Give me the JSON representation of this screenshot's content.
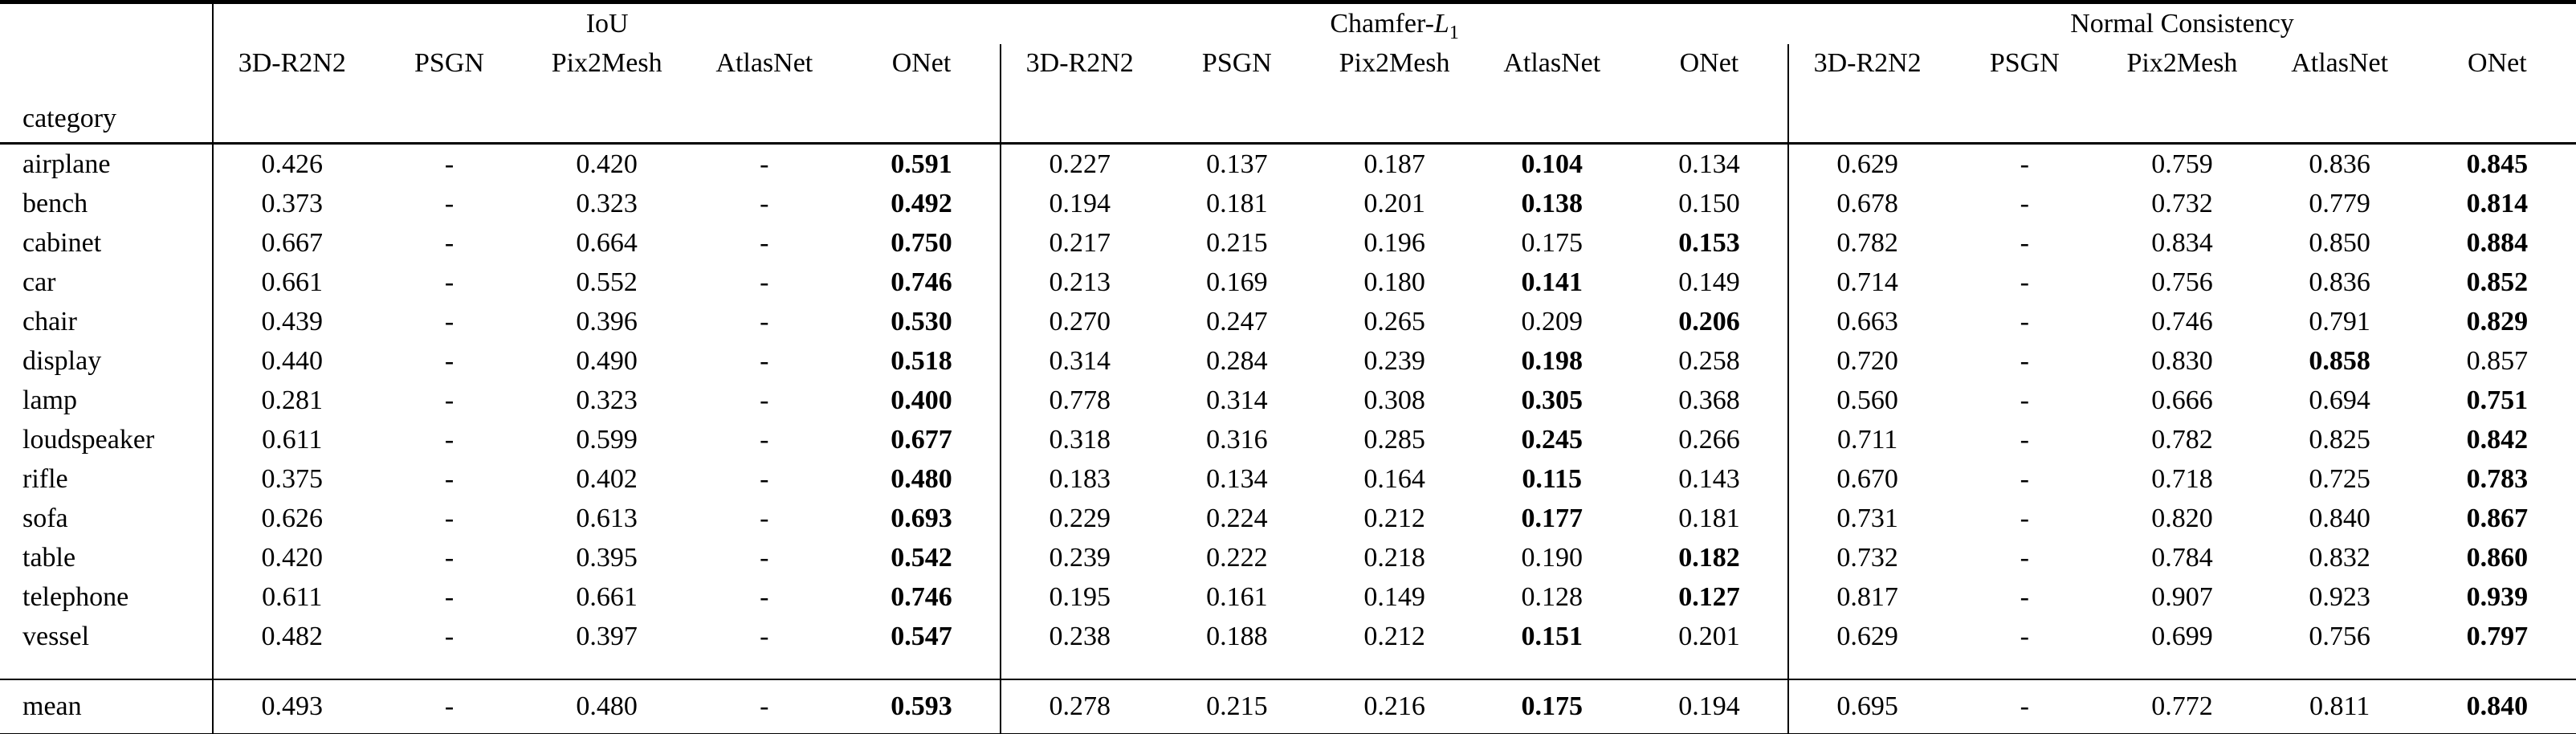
{
  "table": {
    "category_header": "category",
    "groups": [
      {
        "label": "IoU",
        "columns": [
          "3D-R2N2",
          "PSGN",
          "Pix2Mesh",
          "AtlasNet",
          "ONet"
        ]
      },
      {
        "label_prefix": "Chamfer-",
        "label_math": "L",
        "label_sub": "1",
        "columns": [
          "3D-R2N2",
          "PSGN",
          "Pix2Mesh",
          "AtlasNet",
          "ONet"
        ]
      },
      {
        "label": "Normal Consistency",
        "columns": [
          "3D-R2N2",
          "PSGN",
          "Pix2Mesh",
          "AtlasNet",
          "ONet"
        ]
      }
    ],
    "rows": [
      {
        "category": "airplane",
        "iou": [
          "0.426",
          "-",
          "0.420",
          "-",
          "0.591"
        ],
        "iou_bold": [
          4
        ],
        "chamfer": [
          "0.227",
          "0.137",
          "0.187",
          "0.104",
          "0.134"
        ],
        "chamfer_bold": [
          3
        ],
        "normal": [
          "0.629",
          "-",
          "0.759",
          "0.836",
          "0.845"
        ],
        "normal_bold": [
          4
        ]
      },
      {
        "category": "bench",
        "iou": [
          "0.373",
          "-",
          "0.323",
          "-",
          "0.492"
        ],
        "iou_bold": [
          4
        ],
        "chamfer": [
          "0.194",
          "0.181",
          "0.201",
          "0.138",
          "0.150"
        ],
        "chamfer_bold": [
          3
        ],
        "normal": [
          "0.678",
          "-",
          "0.732",
          "0.779",
          "0.814"
        ],
        "normal_bold": [
          4
        ]
      },
      {
        "category": "cabinet",
        "iou": [
          "0.667",
          "-",
          "0.664",
          "-",
          "0.750"
        ],
        "iou_bold": [
          4
        ],
        "chamfer": [
          "0.217",
          "0.215",
          "0.196",
          "0.175",
          "0.153"
        ],
        "chamfer_bold": [
          4
        ],
        "normal": [
          "0.782",
          "-",
          "0.834",
          "0.850",
          "0.884"
        ],
        "normal_bold": [
          4
        ]
      },
      {
        "category": "car",
        "iou": [
          "0.661",
          "-",
          "0.552",
          "-",
          "0.746"
        ],
        "iou_bold": [
          4
        ],
        "chamfer": [
          "0.213",
          "0.169",
          "0.180",
          "0.141",
          "0.149"
        ],
        "chamfer_bold": [
          3
        ],
        "normal": [
          "0.714",
          "-",
          "0.756",
          "0.836",
          "0.852"
        ],
        "normal_bold": [
          4
        ]
      },
      {
        "category": "chair",
        "iou": [
          "0.439",
          "-",
          "0.396",
          "-",
          "0.530"
        ],
        "iou_bold": [
          4
        ],
        "chamfer": [
          "0.270",
          "0.247",
          "0.265",
          "0.209",
          "0.206"
        ],
        "chamfer_bold": [
          4
        ],
        "normal": [
          "0.663",
          "-",
          "0.746",
          "0.791",
          "0.829"
        ],
        "normal_bold": [
          4
        ]
      },
      {
        "category": "display",
        "iou": [
          "0.440",
          "-",
          "0.490",
          "-",
          "0.518"
        ],
        "iou_bold": [
          4
        ],
        "chamfer": [
          "0.314",
          "0.284",
          "0.239",
          "0.198",
          "0.258"
        ],
        "chamfer_bold": [
          3
        ],
        "normal": [
          "0.720",
          "-",
          "0.830",
          "0.858",
          "0.857"
        ],
        "normal_bold": [
          3
        ]
      },
      {
        "category": "lamp",
        "iou": [
          "0.281",
          "-",
          "0.323",
          "-",
          "0.400"
        ],
        "iou_bold": [
          4
        ],
        "chamfer": [
          "0.778",
          "0.314",
          "0.308",
          "0.305",
          "0.368"
        ],
        "chamfer_bold": [
          3
        ],
        "normal": [
          "0.560",
          "-",
          "0.666",
          "0.694",
          "0.751"
        ],
        "normal_bold": [
          4
        ]
      },
      {
        "category": "loudspeaker",
        "iou": [
          "0.611",
          "-",
          "0.599",
          "-",
          "0.677"
        ],
        "iou_bold": [
          4
        ],
        "chamfer": [
          "0.318",
          "0.316",
          "0.285",
          "0.245",
          "0.266"
        ],
        "chamfer_bold": [
          3
        ],
        "normal": [
          "0.711",
          "-",
          "0.782",
          "0.825",
          "0.842"
        ],
        "normal_bold": [
          4
        ]
      },
      {
        "category": "rifle",
        "iou": [
          "0.375",
          "-",
          "0.402",
          "-",
          "0.480"
        ],
        "iou_bold": [
          4
        ],
        "chamfer": [
          "0.183",
          "0.134",
          "0.164",
          "0.115",
          "0.143"
        ],
        "chamfer_bold": [
          3
        ],
        "normal": [
          "0.670",
          "-",
          "0.718",
          "0.725",
          "0.783"
        ],
        "normal_bold": [
          4
        ]
      },
      {
        "category": "sofa",
        "iou": [
          "0.626",
          "-",
          "0.613",
          "-",
          "0.693"
        ],
        "iou_bold": [
          4
        ],
        "chamfer": [
          "0.229",
          "0.224",
          "0.212",
          "0.177",
          "0.181"
        ],
        "chamfer_bold": [
          3
        ],
        "normal": [
          "0.731",
          "-",
          "0.820",
          "0.840",
          "0.867"
        ],
        "normal_bold": [
          4
        ]
      },
      {
        "category": "table",
        "iou": [
          "0.420",
          "-",
          "0.395",
          "-",
          "0.542"
        ],
        "iou_bold": [
          4
        ],
        "chamfer": [
          "0.239",
          "0.222",
          "0.218",
          "0.190",
          "0.182"
        ],
        "chamfer_bold": [
          4
        ],
        "normal": [
          "0.732",
          "-",
          "0.784",
          "0.832",
          "0.860"
        ],
        "normal_bold": [
          4
        ]
      },
      {
        "category": "telephone",
        "iou": [
          "0.611",
          "-",
          "0.661",
          "-",
          "0.746"
        ],
        "iou_bold": [
          4
        ],
        "chamfer": [
          "0.195",
          "0.161",
          "0.149",
          "0.128",
          "0.127"
        ],
        "chamfer_bold": [
          4
        ],
        "normal": [
          "0.817",
          "-",
          "0.907",
          "0.923",
          "0.939"
        ],
        "normal_bold": [
          4
        ]
      },
      {
        "category": "vessel",
        "iou": [
          "0.482",
          "-",
          "0.397",
          "-",
          "0.547"
        ],
        "iou_bold": [
          4
        ],
        "chamfer": [
          "0.238",
          "0.188",
          "0.212",
          "0.151",
          "0.201"
        ],
        "chamfer_bold": [
          3
        ],
        "normal": [
          "0.629",
          "-",
          "0.699",
          "0.756",
          "0.797"
        ],
        "normal_bold": [
          4
        ]
      }
    ],
    "mean": {
      "category": "mean",
      "iou": [
        "0.493",
        "-",
        "0.480",
        "-",
        "0.593"
      ],
      "iou_bold": [
        4
      ],
      "chamfer": [
        "0.278",
        "0.215",
        "0.216",
        "0.175",
        "0.194"
      ],
      "chamfer_bold": [
        3
      ],
      "normal": [
        "0.695",
        "-",
        "0.772",
        "0.811",
        "0.840"
      ],
      "normal_bold": [
        4
      ]
    }
  }
}
